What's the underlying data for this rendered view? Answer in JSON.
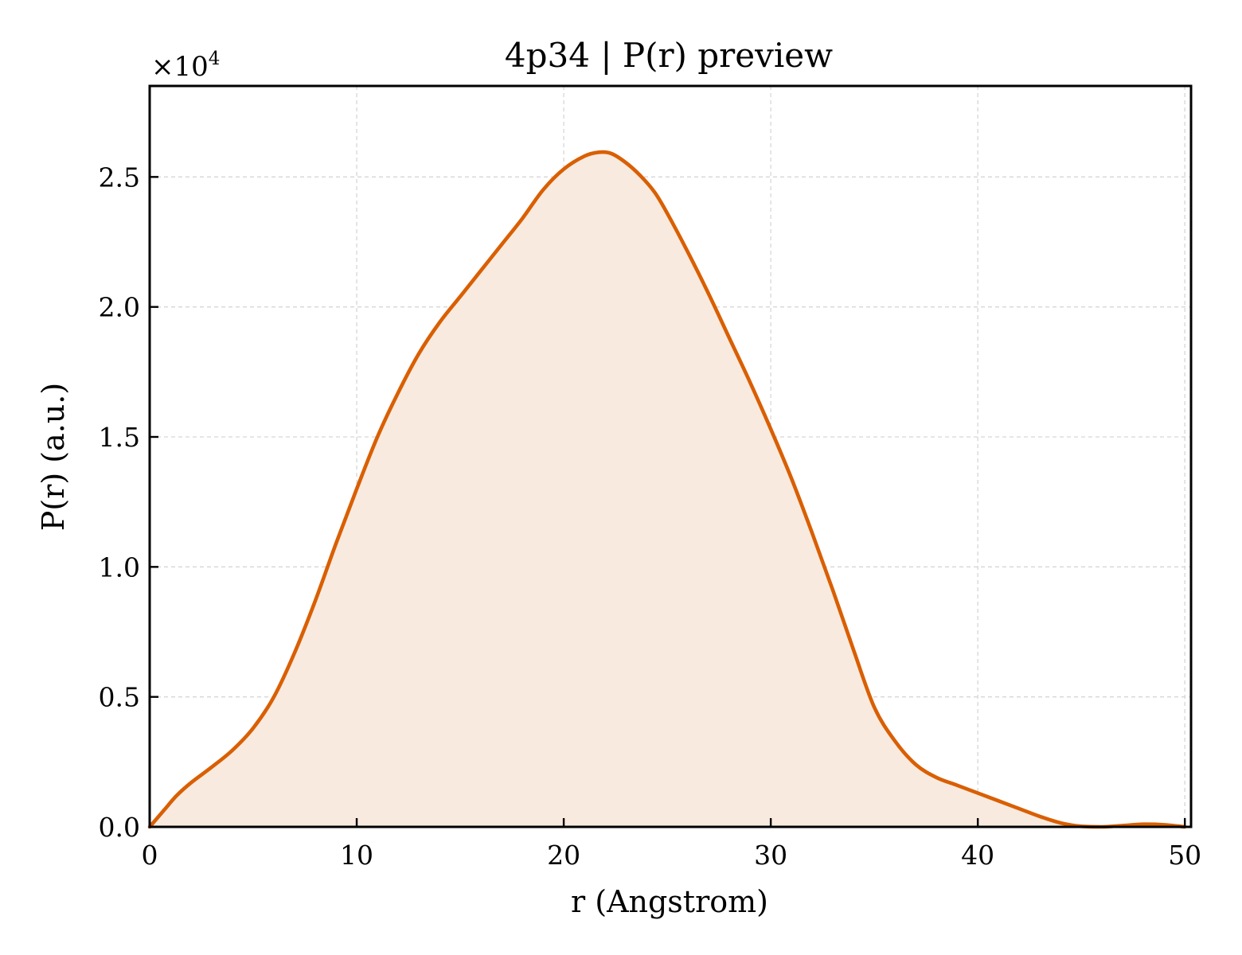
{
  "chart_data": {
    "type": "area",
    "title": "4p34 | P(r) preview",
    "xlabel": "r (Angstrom)",
    "ylabel": "P(r) (a.u.)",
    "y_scale_label": "×10",
    "y_scale_exponent": "4",
    "xlim": [
      0,
      50.3
    ],
    "ylim": [
      0,
      28500
    ],
    "grid": true,
    "line_color": "#d95f02",
    "fill_color": "#f9eadf",
    "x_ticks": [
      0,
      10,
      20,
      30,
      40,
      50
    ],
    "x_tick_labels": [
      "0",
      "10",
      "20",
      "30",
      "40",
      "50"
    ],
    "y_ticks": [
      0,
      5000,
      10000,
      15000,
      20000,
      25000
    ],
    "y_tick_labels": [
      "0.0",
      "0.5",
      "1.0",
      "1.5",
      "2.0",
      "2.5"
    ],
    "series": [
      {
        "x": [
          0,
          0.7,
          1.3,
          2,
          3,
          4,
          5,
          6,
          7,
          8,
          9,
          10,
          11,
          12,
          13,
          14,
          15,
          16,
          17,
          18,
          19,
          20,
          21,
          21.7,
          22.3,
          23,
          23.7,
          24.4,
          25,
          26,
          27,
          28,
          29,
          30,
          31,
          32,
          33,
          34,
          35,
          36,
          37,
          38,
          39,
          40,
          41,
          42,
          43,
          44,
          45,
          46,
          47,
          48,
          49,
          50
        ],
        "y": [
          0,
          650,
          1200,
          1700,
          2300,
          2950,
          3800,
          5000,
          6700,
          8700,
          10900,
          13000,
          15000,
          16700,
          18200,
          19400,
          20400,
          21400,
          22400,
          23400,
          24500,
          25300,
          25800,
          25950,
          25900,
          25550,
          25050,
          24400,
          23600,
          22100,
          20500,
          18800,
          17100,
          15300,
          13400,
          11300,
          9100,
          6800,
          4600,
          3300,
          2400,
          1900,
          1600,
          1300,
          1000,
          700,
          400,
          150,
          20,
          0,
          50,
          100,
          80,
          0
        ]
      }
    ]
  }
}
